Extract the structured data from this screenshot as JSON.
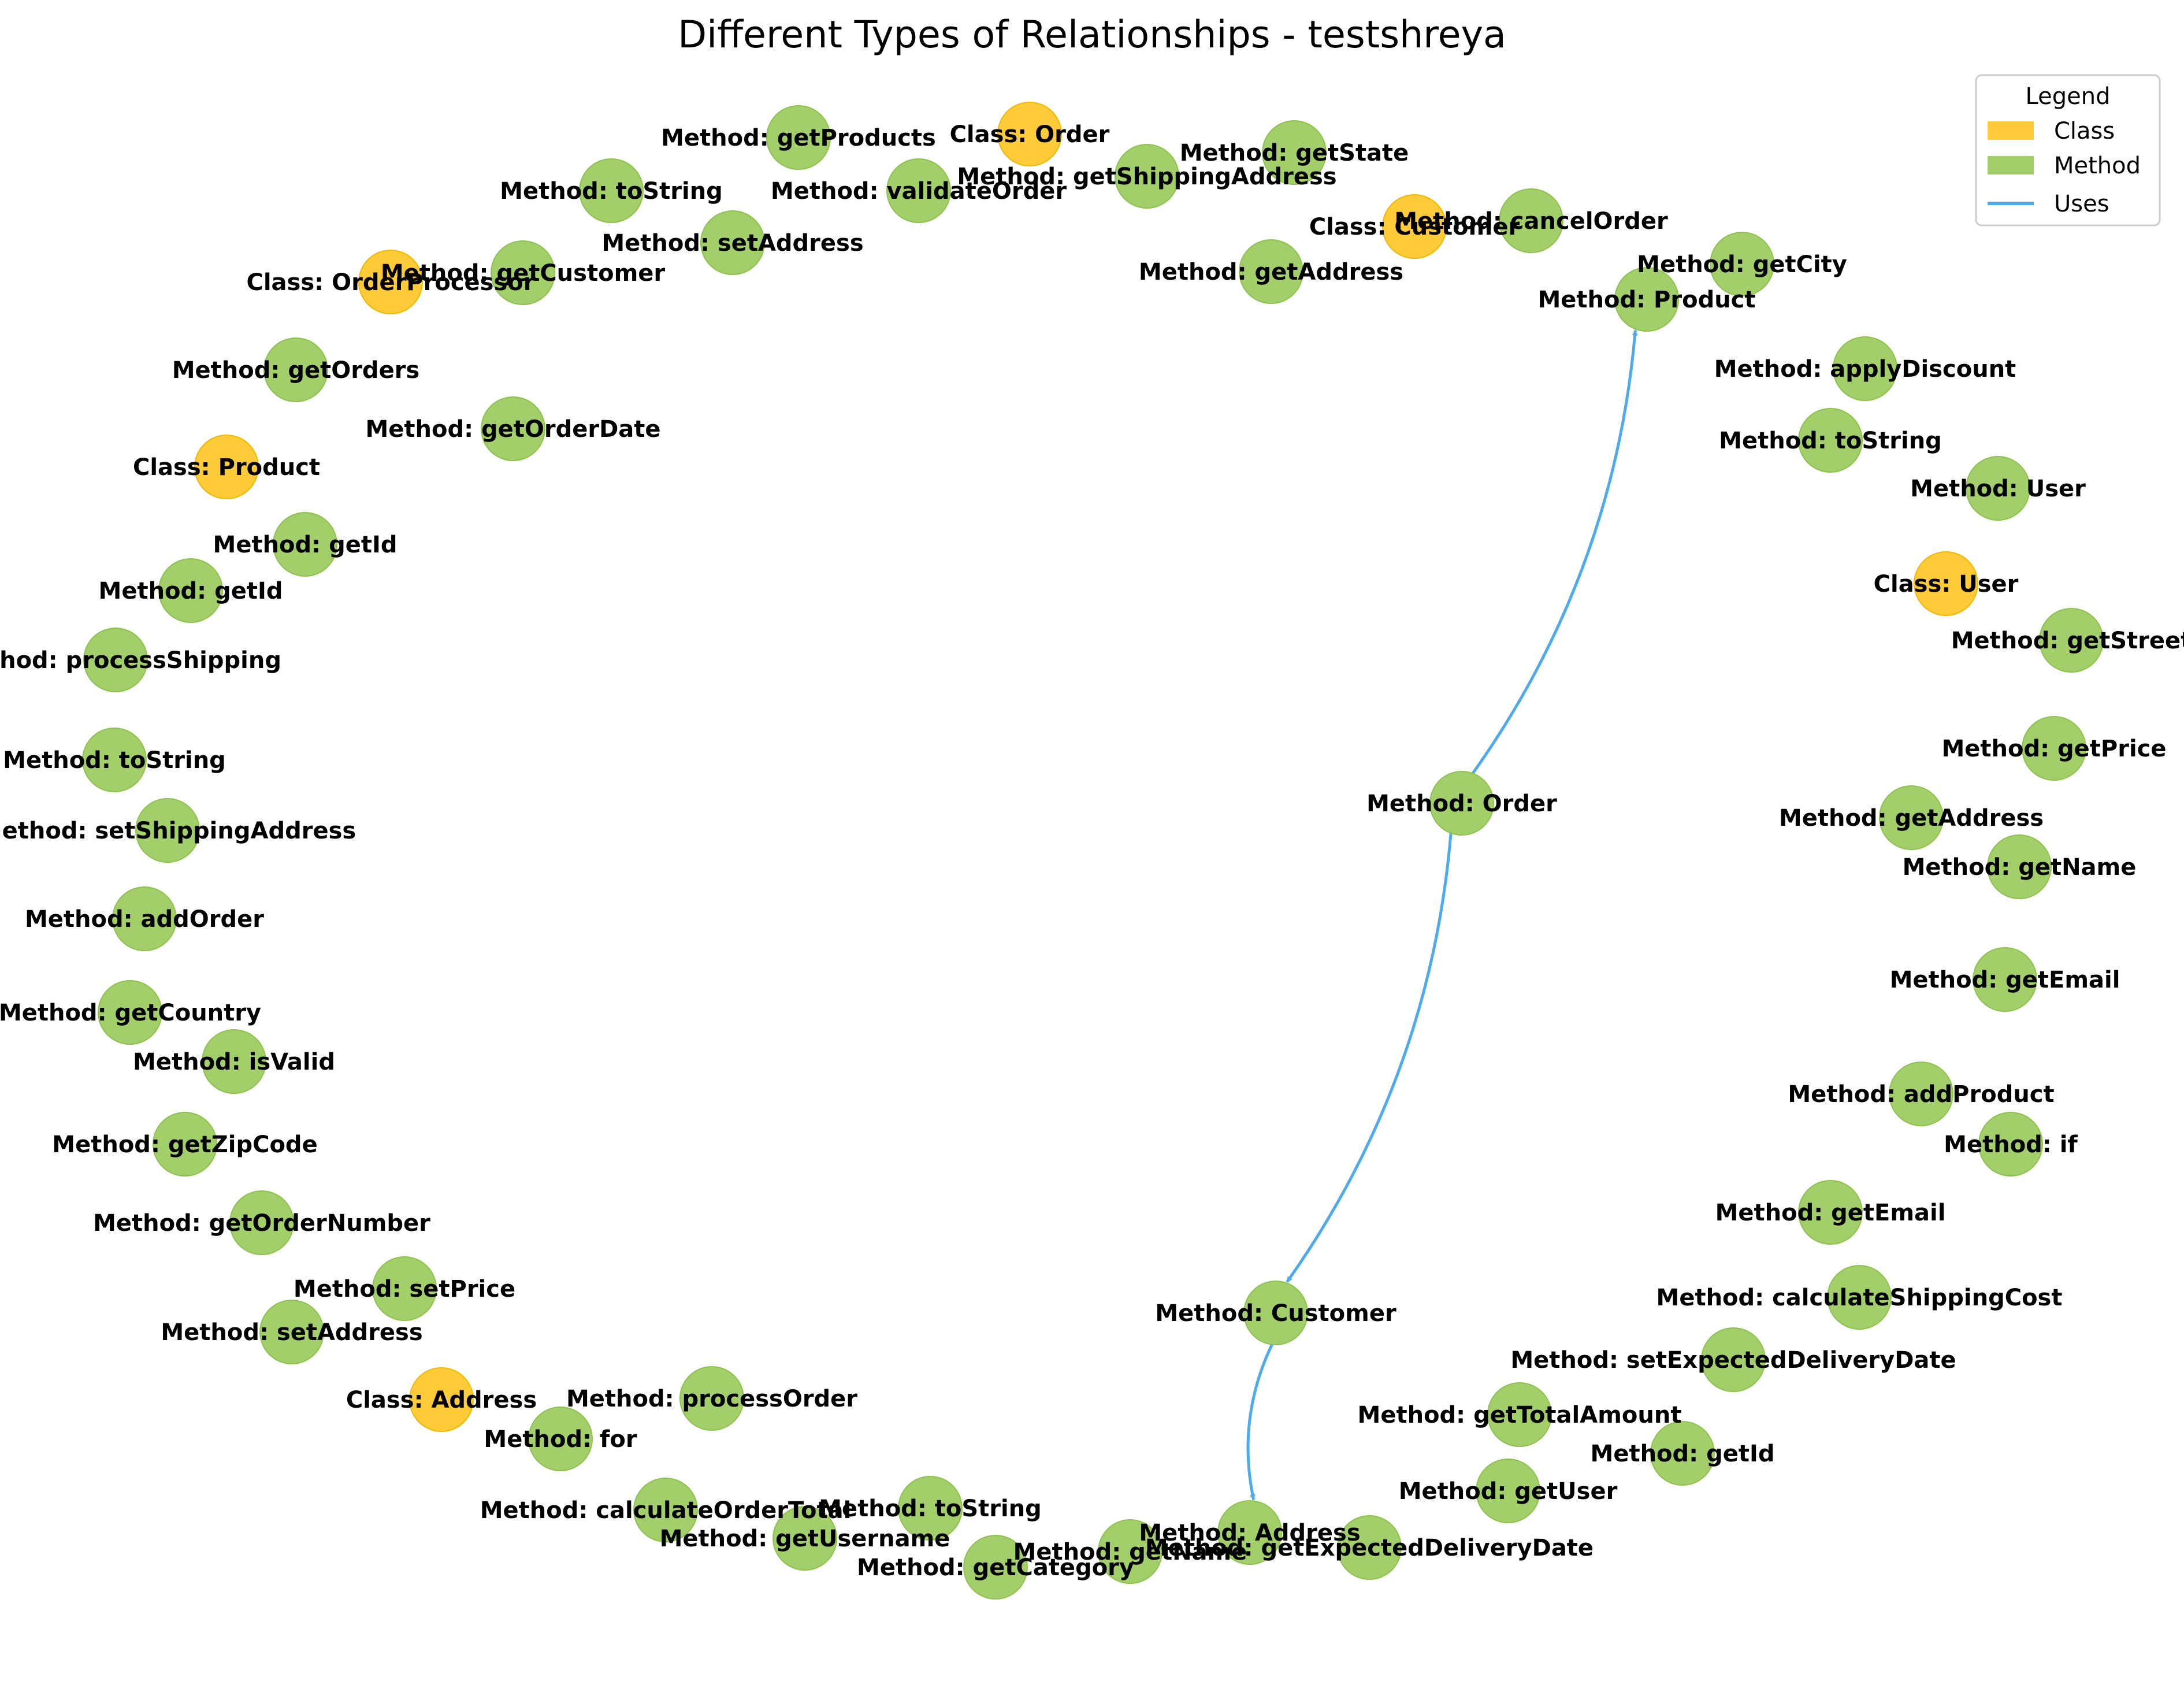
{
  "title": "Different Types of Relationships - testshreya",
  "colors": {
    "class": "#FFC524",
    "method": "#98CA59",
    "uses": "#4DAAEE"
  },
  "legend": {
    "title": "Legend",
    "items": [
      {
        "label": "Class",
        "kind": "class"
      },
      {
        "label": "Method",
        "kind": "method"
      },
      {
        "label": "Uses",
        "kind": "uses"
      }
    ]
  },
  "nodes": [
    {
      "id": "n1",
      "type": "class",
      "label": "Class: Order"
    },
    {
      "id": "n2",
      "type": "method",
      "label": "Method: getProducts"
    },
    {
      "id": "n3",
      "type": "method",
      "label": "Method: getState"
    },
    {
      "id": "n4",
      "type": "method",
      "label": "Method: toString"
    },
    {
      "id": "n5",
      "type": "method",
      "label": "Method: validateOrder"
    },
    {
      "id": "n6",
      "type": "method",
      "label": "Method: getShippingAddress"
    },
    {
      "id": "n7",
      "type": "class",
      "label": "Class: Customer"
    },
    {
      "id": "n8",
      "type": "method",
      "label": "Method: cancelOrder"
    },
    {
      "id": "n9",
      "type": "method",
      "label": "Method: setAddress"
    },
    {
      "id": "n10",
      "type": "method",
      "label": "Method: getAddress"
    },
    {
      "id": "n11",
      "type": "method",
      "label": "Method: getCity"
    },
    {
      "id": "n12",
      "type": "class",
      "label": "Class: OrderProcessor"
    },
    {
      "id": "n13",
      "type": "method",
      "label": "Method: getCustomer"
    },
    {
      "id": "n14",
      "type": "method",
      "label": "Method: Product"
    },
    {
      "id": "n15",
      "type": "method",
      "label": "Method: getOrders"
    },
    {
      "id": "n16",
      "type": "method",
      "label": "Method: applyDiscount"
    },
    {
      "id": "n17",
      "type": "method",
      "label": "Method: getOrderDate"
    },
    {
      "id": "n18",
      "type": "method",
      "label": "Method: toString"
    },
    {
      "id": "n19",
      "type": "class",
      "label": "Class: Product"
    },
    {
      "id": "n20",
      "type": "method",
      "label": "Method: User"
    },
    {
      "id": "n21",
      "type": "method",
      "label": "Method: getId"
    },
    {
      "id": "n22",
      "type": "class",
      "label": "Class: User"
    },
    {
      "id": "n23",
      "type": "method",
      "label": "Method: getId"
    },
    {
      "id": "n24",
      "type": "method",
      "label": "Method: processShipping"
    },
    {
      "id": "n25",
      "type": "method",
      "label": "Method: getStreet"
    },
    {
      "id": "n26",
      "type": "method",
      "label": "Method: getPrice"
    },
    {
      "id": "n27",
      "type": "method",
      "label": "Method: toString"
    },
    {
      "id": "n28",
      "type": "method",
      "label": "Method: Order"
    },
    {
      "id": "n29",
      "type": "method",
      "label": "Method: getAddress"
    },
    {
      "id": "n30",
      "type": "method",
      "label": "Method: setShippingAddress"
    },
    {
      "id": "n31",
      "type": "method",
      "label": "Method: getName"
    },
    {
      "id": "n32",
      "type": "method",
      "label": "Method: addOrder"
    },
    {
      "id": "n33",
      "type": "method",
      "label": "Method: getEmail"
    },
    {
      "id": "n34",
      "type": "method",
      "label": "Method: getCountry"
    },
    {
      "id": "n35",
      "type": "method",
      "label": "Method: isValid"
    },
    {
      "id": "n36",
      "type": "method",
      "label": "Method: addProduct"
    },
    {
      "id": "n37",
      "type": "method",
      "label": "Method: getZipCode"
    },
    {
      "id": "n38",
      "type": "method",
      "label": "Method: if"
    },
    {
      "id": "n39",
      "type": "method",
      "label": "Method: getEmail"
    },
    {
      "id": "n40",
      "type": "method",
      "label": "Method: getOrderNumber"
    },
    {
      "id": "n41",
      "type": "method",
      "label": "Method: calculateShippingCost"
    },
    {
      "id": "n42",
      "type": "method",
      "label": "Method: setPrice"
    },
    {
      "id": "n43",
      "type": "method",
      "label": "Method: Customer"
    },
    {
      "id": "n44",
      "type": "method",
      "label": "Method: setAddress"
    },
    {
      "id": "n45",
      "type": "method",
      "label": "Method: setExpectedDeliveryDate"
    },
    {
      "id": "n46",
      "type": "class",
      "label": "Class: Address"
    },
    {
      "id": "n47",
      "type": "method",
      "label": "Method: processOrder"
    },
    {
      "id": "n48",
      "type": "method",
      "label": "Method: getTotalAmount"
    },
    {
      "id": "n49",
      "type": "method",
      "label": "Method: for"
    },
    {
      "id": "n50",
      "type": "method",
      "label": "Method: getId"
    },
    {
      "id": "n51",
      "type": "method",
      "label": "Method: getUser"
    },
    {
      "id": "n52",
      "type": "method",
      "label": "Method: calculateOrderTotal"
    },
    {
      "id": "n53",
      "type": "method",
      "label": "Method: toString"
    },
    {
      "id": "n54",
      "type": "method",
      "label": "Method: getUsername"
    },
    {
      "id": "n55",
      "type": "method",
      "label": "Method: Address"
    },
    {
      "id": "n56",
      "type": "method",
      "label": "Method: getExpectedDeliveryDate"
    },
    {
      "id": "n57",
      "type": "method",
      "label": "Method: getName"
    },
    {
      "id": "n58",
      "type": "method",
      "label": "Method: getCategory"
    }
  ],
  "edges": [
    {
      "from": "n28",
      "to": "n14",
      "type": "uses"
    },
    {
      "from": "n28",
      "to": "n43",
      "type": "uses"
    },
    {
      "from": "n43",
      "to": "n55",
      "type": "uses"
    }
  ]
}
